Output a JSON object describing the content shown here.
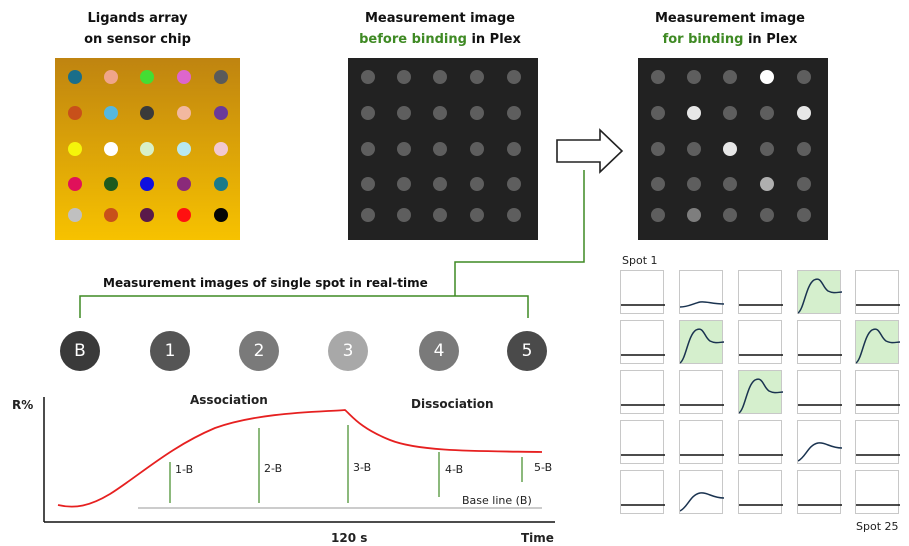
{
  "titles": {
    "ligands_line1": "Ligands array",
    "ligands_line2": "on sensor chip",
    "before_line1": "Measurement image",
    "before_green": "before binding",
    "before_suffix": " in Plex",
    "for_line1": "Measurement image",
    "for_green": "for binding",
    "for_suffix": " in Plex"
  },
  "ligand_colors": [
    [
      "#1a6e8a",
      "#f0a58a",
      "#44dd33",
      "#dd66cc",
      "#5a5a5a"
    ],
    [
      "#c8501a",
      "#55b8e0",
      "#3a3a3a",
      "#f2b8a0",
      "#6a3a9a"
    ],
    [
      "#f5f50a",
      "#ffffff",
      "#d8f0c8",
      "#b8e8f0",
      "#f2c8d0"
    ],
    [
      "#e0105a",
      "#1e5a1e",
      "#1010e0",
      "#8a2a7a",
      "#1a7a8a"
    ],
    [
      "#c0c0c0",
      "#c8501a",
      "#5a1a4a",
      "#ff1010",
      "#050505"
    ]
  ],
  "binding_intensity": [
    [
      0,
      0,
      0,
      1,
      0
    ],
    [
      0,
      0.85,
      0,
      0,
      0.85
    ],
    [
      0,
      0,
      0.85,
      0,
      0
    ],
    [
      0,
      0,
      0,
      0.5,
      0
    ],
    [
      0,
      0.2,
      0,
      0,
      0
    ]
  ],
  "realtime": {
    "heading": "Measurement images of single spot in real-time",
    "circles": [
      {
        "label": "B",
        "color": "#3a3a3a"
      },
      {
        "label": "1",
        "color": "#555555"
      },
      {
        "label": "2",
        "color": "#7a7a7a"
      },
      {
        "label": "3",
        "color": "#a8a8a8"
      },
      {
        "label": "4",
        "color": "#7a7a7a"
      },
      {
        "label": "5",
        "color": "#4a4a4a"
      }
    ]
  },
  "sensorgram": {
    "y_label": "R%",
    "x_label": "Time",
    "x_mark": "120 s",
    "association": "Association",
    "dissociation": "Dissociation",
    "baseline": "Base line (B)",
    "markers": [
      "1-B",
      "2-B",
      "3-B",
      "4-B",
      "5-B"
    ]
  },
  "spot_grid": {
    "first_label": "Spot 1",
    "last_label": "Spot 25",
    "curves": [
      [
        "flat",
        "bump",
        "flat",
        "peak",
        "flat"
      ],
      [
        "flat",
        "peak",
        "flat",
        "flat",
        "peak"
      ],
      [
        "flat",
        "flat",
        "peak",
        "flat",
        "flat"
      ],
      [
        "flat",
        "flat",
        "flat",
        "mid",
        "flat"
      ],
      [
        "flat",
        "mid",
        "flat",
        "flat",
        "flat"
      ]
    ],
    "highlighted": [
      [
        false,
        false,
        false,
        true,
        false
      ],
      [
        false,
        true,
        false,
        false,
        true
      ],
      [
        false,
        false,
        true,
        false,
        false
      ],
      [
        false,
        false,
        false,
        false,
        false
      ],
      [
        false,
        false,
        false,
        false,
        false
      ]
    ]
  }
}
